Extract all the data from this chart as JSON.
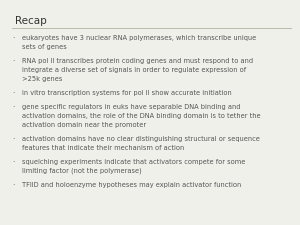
{
  "title": "Recap",
  "background_color": "#f0f0eb",
  "title_color": "#333333",
  "text_color": "#555555",
  "title_fontsize": 7.5,
  "body_fontsize": 4.8,
  "line_color": "#bbbbaa",
  "bullets": [
    "eukaryotes have 3 nuclear RNA polymerases, which transcribe unique\nsets of genes",
    "RNA pol II transcribes protein coding genes and must respond to and\nintegrate a diverse set of signals in order to regulate expression of\n>25k genes",
    "in vitro transcription systems for pol II show accurate initiation",
    "gene specific regulators in euks have separable DNA binding and\nactivation domains, the role of the DNA binding domain is to tether the\nactivation domain near the promoter",
    "activation domains have no clear distinguishing structural or sequence\nfeatures that indicate their mechanism of action",
    "squelching experiments indicate that activators compete for some\nlimiting factor (not the polymerase)",
    "TFIID and holoenzyme hypotheses may explain activator function"
  ],
  "bullet_char": "·"
}
